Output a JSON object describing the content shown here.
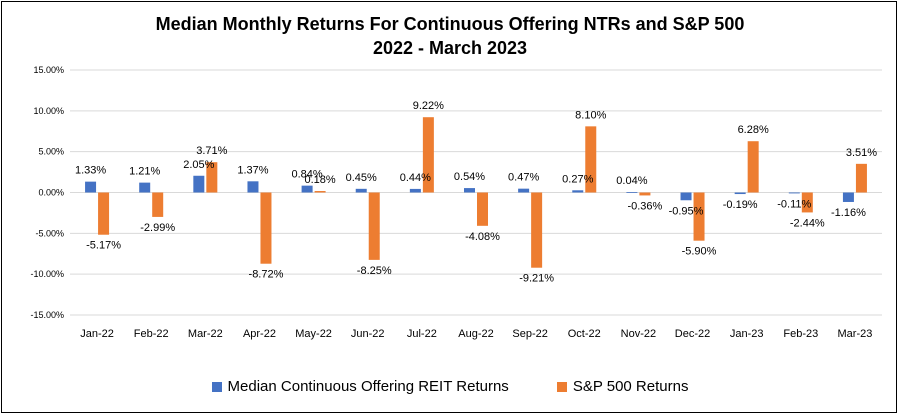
{
  "chart_data": {
    "type": "bar",
    "title": "Median Monthly Returns For Continuous Offering NTRs and S&P 500",
    "subtitle": "2022 - March 2023",
    "categories": [
      "Jan-22",
      "Feb-22",
      "Mar-22",
      "Apr-22",
      "May-22",
      "Jun-22",
      "Jul-22",
      "Aug-22",
      "Sep-22",
      "Oct-22",
      "Nov-22",
      "Dec-22",
      "Jan-23",
      "Feb-23",
      "Mar-23"
    ],
    "series": [
      {
        "name": "Median Continuous Offering REIT Returns",
        "color": "#4472C4",
        "values": [
          1.33,
          1.21,
          2.05,
          1.37,
          0.84,
          0.45,
          0.44,
          0.54,
          0.47,
          0.27,
          0.04,
          -0.95,
          -0.19,
          -0.11,
          -1.16
        ],
        "labels": [
          "1.33%",
          "1.21%",
          "2.05%",
          "1.37%",
          "0.84%",
          "0.45%",
          "0.44%",
          "0.54%",
          "0.47%",
          "0.27%",
          "0.04%",
          "-0.95%",
          "-0.19%",
          "-0.11%",
          "-1.16%"
        ]
      },
      {
        "name": "S&P 500 Returns",
        "color": "#ED7D31",
        "values": [
          -5.17,
          -2.99,
          3.71,
          -8.72,
          0.18,
          -8.25,
          9.22,
          -4.08,
          -9.21,
          8.1,
          -0.36,
          -5.9,
          6.28,
          -2.44,
          3.51
        ],
        "labels": [
          "-5.17%",
          "-2.99%",
          "3.71%",
          "-8.72%",
          "0.18%",
          "-8.25%",
          "9.22%",
          "-4.08%",
          "-9.21%",
          "8.10%",
          "-0.36%",
          "-5.90%",
          "6.28%",
          "-2.44%",
          "3.51%"
        ]
      }
    ],
    "ylim": [
      -15,
      15
    ],
    "yticks": [
      15,
      10,
      5,
      0,
      -5,
      -10,
      -15
    ],
    "ytick_labels": [
      "15.00%",
      "10.00%",
      "5.00%",
      "0.00%",
      "-5.00%",
      "-10.00%",
      "-15.00%"
    ],
    "grid": true,
    "legend": "bottom"
  }
}
